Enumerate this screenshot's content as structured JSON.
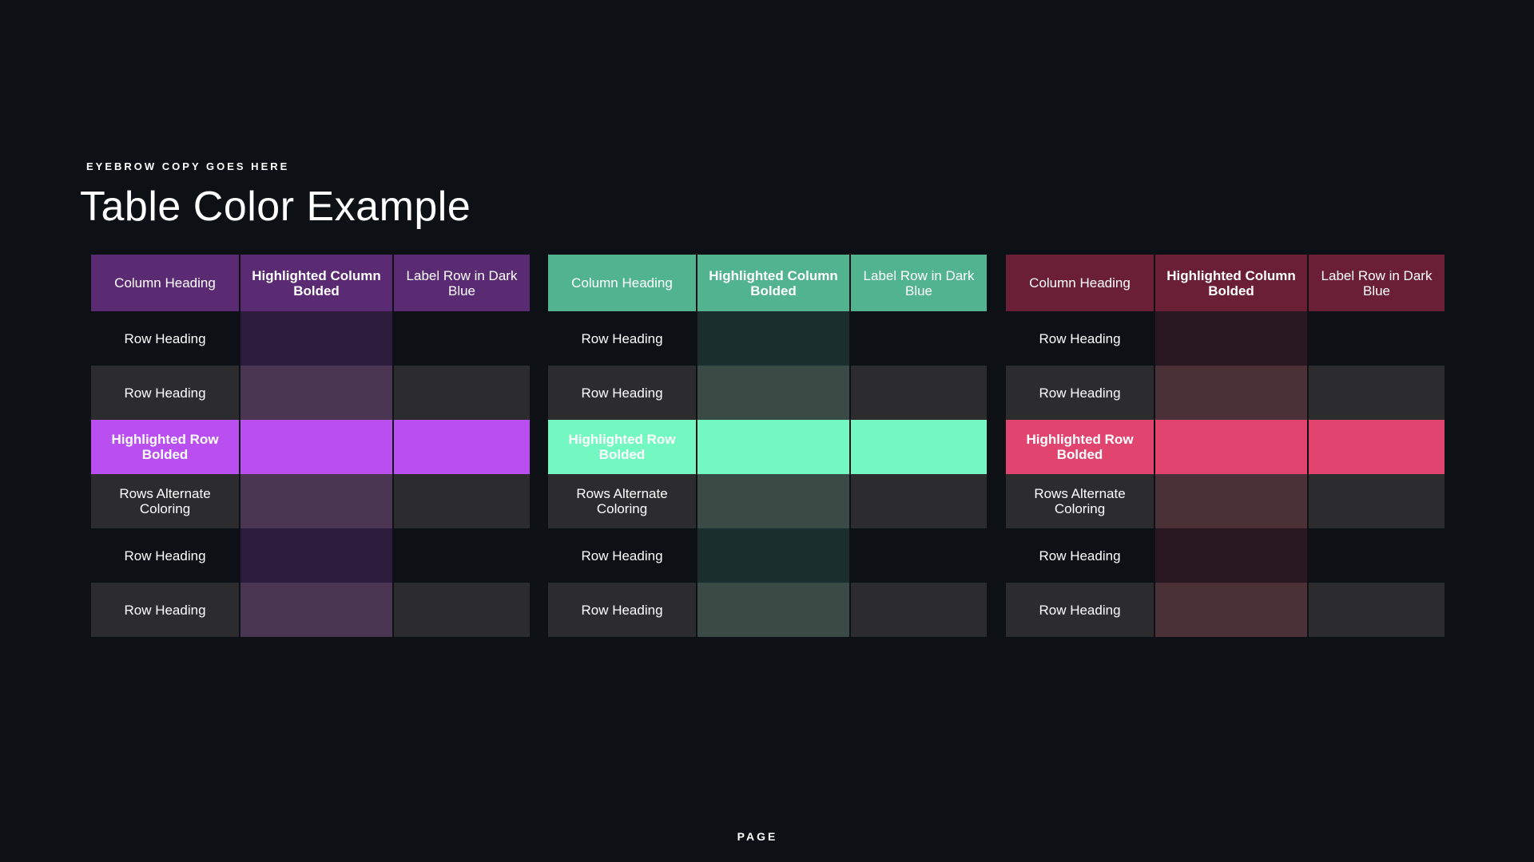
{
  "eyebrow": "EYEBROW COPY GOES HERE",
  "title": "Table Color Example",
  "page_label": "PAGE",
  "tables": [
    {
      "theme": "purple",
      "colors": {
        "header": "#5a2a73",
        "row_dark": "#0d1115",
        "row_alt": "#2c2c2e",
        "col_dark": "#2e1c3d",
        "col_alt": "#4a3552",
        "highlight_row": "#b94ff0"
      },
      "headers": [
        "Column Heading",
        "Highlighted Column Bolded",
        "Label Row in Dark Blue"
      ],
      "rows": [
        "Row Heading",
        "Row Heading",
        "Highlighted Row Bolded",
        "Rows Alternate Coloring",
        "Row Heading",
        "Row Heading"
      ]
    },
    {
      "theme": "green",
      "colors": {
        "header": "#52b390",
        "row_dark": "#0d1115",
        "row_alt": "#2c2c2e",
        "col_dark": "#1a2f2d",
        "col_alt": "#3a4b45",
        "highlight_row": "#72f8c0"
      },
      "headers": [
        "Column Heading",
        "Highlighted Column Bolded",
        "Label Row in Dark Blue"
      ],
      "rows": [
        "Row Heading",
        "Row Heading",
        "Highlighted Row Bolded",
        "Rows Alternate Coloring",
        "Row Heading",
        "Row Heading"
      ]
    },
    {
      "theme": "red",
      "colors": {
        "header": "#6b1f36",
        "row_dark": "#0d1115",
        "row_alt": "#2c2c2e",
        "col_dark": "#2a1821",
        "col_alt": "#4a3137",
        "highlight_row": "#e24470"
      },
      "headers": [
        "Column Heading",
        "Highlighted Column Bolded",
        "Label Row in Dark Blue"
      ],
      "rows": [
        "Row Heading",
        "Row Heading",
        "Highlighted Row Bolded",
        "Rows Alternate Coloring",
        "Row Heading",
        "Row Heading"
      ]
    }
  ]
}
